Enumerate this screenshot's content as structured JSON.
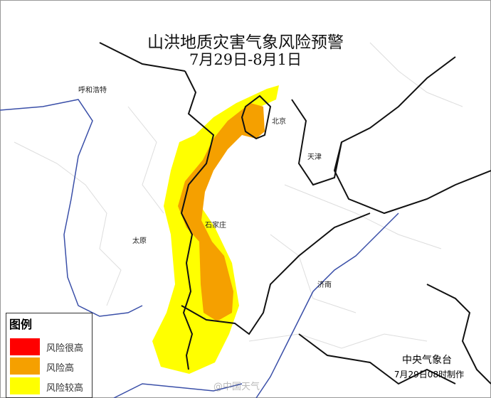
{
  "title": "山洪地质灾害气象风险预警",
  "date_range": "7月29日-8月1日",
  "cities": [
    {
      "name": "呼和浩特"
    },
    {
      "name": "北京"
    },
    {
      "name": "天津"
    },
    {
      "name": "石家庄"
    },
    {
      "name": "太原"
    },
    {
      "name": "济南"
    }
  ],
  "legend": {
    "title": "图例",
    "items": [
      {
        "label": "风险很高",
        "color": "#ff0000"
      },
      {
        "label": "风险高",
        "color": "#f5a000"
      },
      {
        "label": "风险较高",
        "color": "#ffff00"
      }
    ]
  },
  "issuer": "中央气象台",
  "issued": "7月29日08时制作",
  "watermark": "@中国天气"
}
